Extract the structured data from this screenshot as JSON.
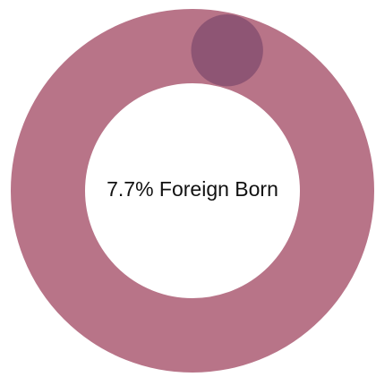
{
  "chart_data": {
    "type": "donut",
    "values": [
      7.7
    ],
    "value_labels": [
      "7.7% Foreign Born"
    ],
    "total": 100,
    "ring_color": "#b87488",
    "color": "#8e5574"
  }
}
